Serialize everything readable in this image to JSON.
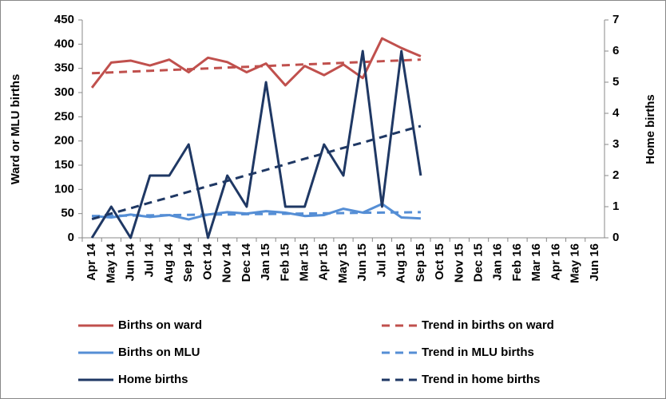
{
  "chart_data": {
    "type": "line",
    "y_label": "Ward or MLU births",
    "y2_label": "Home births",
    "categories": [
      "Apr 14",
      "May 14",
      "Jun 14",
      "Jul 14",
      "Aug 14",
      "Sep 14",
      "Oct 14",
      "Nov 14",
      "Dec 14",
      "Jan 15",
      "Feb 15",
      "Mar 15",
      "Apr 15",
      "May 15",
      "Jun 15",
      "Jul 15",
      "Aug 15",
      "Sep 15",
      "Oct 15",
      "Nov 15",
      "Dec 15",
      "Jan 16",
      "Feb 16",
      "Mar 16",
      "Apr 16",
      "May 16",
      "Jun 16"
    ],
    "ylim": [
      0,
      450
    ],
    "yticks": [
      0,
      50,
      100,
      150,
      200,
      250,
      300,
      350,
      400,
      450
    ],
    "y2lim": [
      0,
      7
    ],
    "y2ticks": [
      0,
      1,
      2,
      3,
      4,
      5,
      6,
      7
    ],
    "legend": "bottom",
    "series": [
      {
        "name": "Births on ward",
        "color": "#c0504d",
        "dashed": false,
        "values": [
          310,
          362,
          366,
          356,
          368,
          342,
          372,
          363,
          342,
          360,
          315,
          355,
          336,
          358,
          330,
          412,
          392,
          375,
          null,
          null,
          null,
          null,
          null,
          null,
          null,
          null,
          null
        ]
      },
      {
        "name": "Trend in births on ward",
        "color": "#c0504d",
        "dashed": true,
        "values": [
          340,
          341.6,
          343.3,
          345,
          346.6,
          348.3,
          349.9,
          351.6,
          353.2,
          354.9,
          356.5,
          358.2,
          359.8,
          361.5,
          363.1,
          364.8,
          366.4,
          368.1,
          null,
          null,
          null,
          null,
          null,
          null,
          null,
          null,
          null
        ]
      },
      {
        "name": "Births on MLU",
        "color": "#558ed5",
        "dashed": false,
        "values": [
          45,
          42,
          48,
          43,
          47,
          38,
          48,
          53,
          50,
          55,
          52,
          45,
          47,
          60,
          52,
          70,
          42,
          40,
          null,
          null,
          null,
          null,
          null,
          null,
          null,
          null,
          null
        ]
      },
      {
        "name": "Trend in MLU births",
        "color": "#558ed5",
        "dashed": true,
        "values": [
          45,
          45.5,
          45.9,
          46.4,
          46.9,
          47.4,
          47.8,
          48.3,
          48.8,
          49.2,
          49.7,
          50.2,
          50.6,
          51.1,
          51.6,
          52.1,
          52.5,
          53,
          null,
          null,
          null,
          null,
          null,
          null,
          null,
          null,
          null
        ]
      },
      {
        "name": "Home births",
        "color": "#1f3864",
        "dashed": false,
        "axis": "y2",
        "values": [
          0,
          1,
          0,
          2,
          2,
          3,
          0,
          2,
          1,
          5,
          1,
          1,
          3,
          2,
          6,
          1,
          6,
          2,
          null,
          null,
          null,
          null,
          null,
          null,
          null,
          null,
          null
        ]
      },
      {
        "name": "Trend in home births",
        "color": "#1f3864",
        "dashed": true,
        "axis": "y2",
        "values": [
          0.6,
          0.78,
          0.95,
          1.13,
          1.3,
          1.48,
          1.66,
          1.83,
          2.01,
          2.18,
          2.36,
          2.54,
          2.71,
          2.89,
          3.06,
          3.24,
          3.42,
          3.59,
          null,
          null,
          null,
          null,
          null,
          null,
          null,
          null,
          null
        ]
      }
    ]
  }
}
